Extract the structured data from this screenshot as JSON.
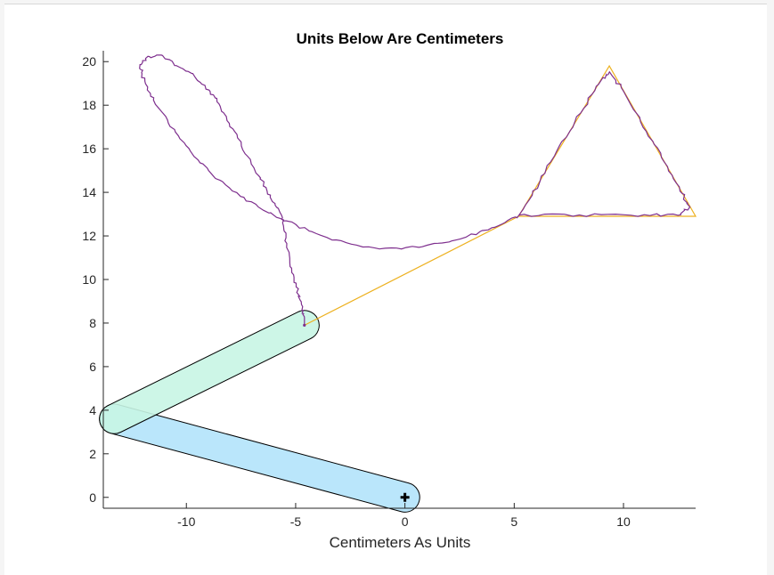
{
  "chart_data": {
    "type": "line",
    "title": "Units Below Are Centimeters",
    "xlabel": "Centimeters As Units",
    "ylabel": "",
    "xlim": [
      -13.8,
      13.3
    ],
    "ylim": [
      -0.5,
      20.5
    ],
    "x_ticks": [
      -10,
      -5,
      0,
      5,
      10
    ],
    "x_tick_labels": [
      "-10",
      "-5",
      "0",
      "5",
      "10"
    ],
    "y_ticks": [
      0,
      2,
      4,
      6,
      8,
      10,
      12,
      14,
      16,
      18,
      20
    ],
    "y_tick_labels": [
      "0",
      "2",
      "4",
      "6",
      "8",
      "10",
      "12",
      "14",
      "16",
      "18",
      "20"
    ],
    "grid": false,
    "colors": {
      "arm1_fill": "#b3e3fb",
      "arm2_fill": "#c8f5e4",
      "arm_stroke": "#000000",
      "target": "#edb120",
      "trace": "#7e2f8e",
      "base_marker": "#000000"
    },
    "arm_segments": [
      {
        "name": "link-1",
        "start": [
          0,
          0
        ],
        "end": [
          -13.3,
          3.6
        ],
        "width": 1.35
      },
      {
        "name": "link-2",
        "start": [
          -13.3,
          3.6
        ],
        "end": [
          -4.6,
          7.9
        ],
        "width": 1.35
      }
    ],
    "base_marker": [
      0,
      0
    ],
    "end_effector": [
      -4.6,
      7.9
    ],
    "target_path": [
      [
        -4.6,
        7.9
      ],
      [
        5.2,
        12.9
      ],
      [
        9.35,
        19.8
      ],
      [
        13.3,
        12.9
      ],
      [
        5.2,
        12.9
      ]
    ],
    "trace_path": [
      [
        -4.6,
        7.9
      ],
      [
        -4.6,
        8.3
      ],
      [
        -4.7,
        8.7
      ],
      [
        -4.9,
        9.4
      ],
      [
        -5.1,
        10.2
      ],
      [
        -5.3,
        11.1
      ],
      [
        -5.5,
        12.1
      ],
      [
        -5.6,
        12.8
      ],
      [
        -5.9,
        13.4
      ],
      [
        -6.3,
        14.1
      ],
      [
        -6.7,
        14.8
      ],
      [
        -7.2,
        15.6
      ],
      [
        -7.7,
        16.6
      ],
      [
        -8.2,
        17.5
      ],
      [
        -8.6,
        18.3
      ],
      [
        -9.1,
        18.8
      ],
      [
        -9.7,
        19.4
      ],
      [
        -10.4,
        19.8
      ],
      [
        -11.2,
        20.3
      ],
      [
        -11.8,
        20.2
      ],
      [
        -12.1,
        19.8
      ],
      [
        -12.0,
        19.3
      ],
      [
        -11.7,
        18.6
      ],
      [
        -11.2,
        17.8
      ],
      [
        -10.6,
        16.9
      ],
      [
        -9.9,
        16.0
      ],
      [
        -9.1,
        15.1
      ],
      [
        -8.2,
        14.3
      ],
      [
        -7.2,
        13.6
      ],
      [
        -6.1,
        13.0
      ],
      [
        -5.0,
        12.5
      ],
      [
        -3.8,
        12.0
      ],
      [
        -2.4,
        11.6
      ],
      [
        -0.9,
        11.4
      ],
      [
        0.6,
        11.5
      ],
      [
        2.0,
        11.7
      ],
      [
        3.2,
        12.1
      ],
      [
        4.3,
        12.5
      ],
      [
        5.2,
        12.9
      ],
      [
        5.9,
        14.0
      ],
      [
        6.7,
        15.4
      ],
      [
        7.5,
        16.8
      ],
      [
        8.3,
        18.1
      ],
      [
        9.0,
        19.2
      ],
      [
        9.35,
        19.5
      ],
      [
        9.9,
        18.8
      ],
      [
        10.6,
        17.6
      ],
      [
        11.3,
        16.4
      ],
      [
        12.0,
        15.2
      ],
      [
        12.6,
        14.1
      ],
      [
        13.0,
        13.3
      ],
      [
        12.5,
        12.95
      ],
      [
        11.0,
        12.95
      ],
      [
        9.0,
        12.95
      ],
      [
        7.0,
        12.95
      ],
      [
        5.2,
        12.95
      ]
    ]
  }
}
